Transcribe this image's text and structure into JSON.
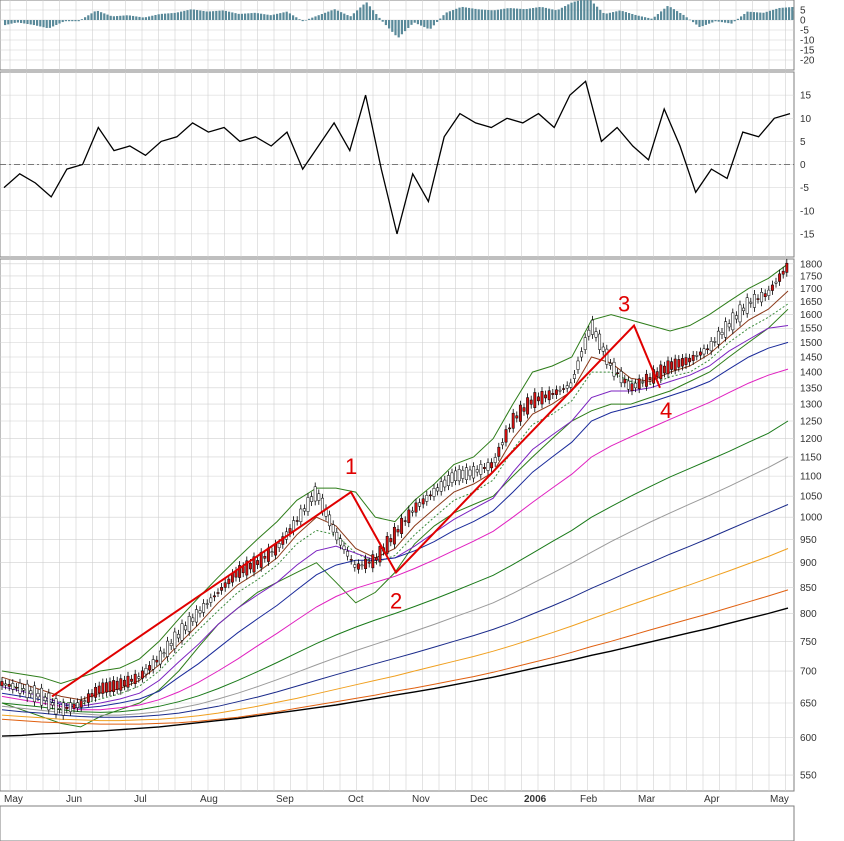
{
  "chart_data": {
    "type": "line",
    "title": "",
    "xlabel": "",
    "ylabel": "",
    "x_ticks": [
      "May",
      "Jun",
      "Jul",
      "Aug",
      "Sep",
      "Oct",
      "Nov",
      "Dec",
      "2006",
      "Feb",
      "Mar",
      "Apr",
      "May"
    ],
    "panels": [
      {
        "name": "macd-histogram",
        "ylim": [
          -25,
          10
        ],
        "y_ticks": [
          5,
          0,
          -5,
          -10,
          -15,
          -20
        ],
        "y_tick_labels": [
          "5",
          "0",
          "-5",
          "-10",
          "-15",
          "-20"
        ]
      },
      {
        "name": "momentum-oscillator",
        "ylim": [
          -20,
          20
        ],
        "y_ticks": [
          15,
          10,
          5,
          0,
          -5,
          -10,
          -15
        ],
        "y_tick_labels": [
          "15",
          "10",
          "5",
          "0",
          "-5",
          "-10",
          "-15"
        ],
        "zero_line": true
      },
      {
        "name": "price",
        "scale": "log",
        "ylim": [
          530,
          1820
        ],
        "y_ticks": [
          1800,
          1750,
          1700,
          1650,
          1600,
          1550,
          1500,
          1450,
          1400,
          1350,
          1300,
          1250,
          1200,
          1150,
          1100,
          1050,
          1000,
          950,
          900,
          850,
          800,
          750,
          700,
          650,
          600,
          550
        ],
        "y_tick_labels": [
          "1800",
          "1750",
          "1700",
          "1650",
          "1600",
          "1550",
          "1500",
          "1450",
          "1400",
          "1350",
          "1300",
          "1250",
          "1200",
          "1150",
          "1100",
          "1050",
          "1000",
          "950",
          "900",
          "850",
          "800",
          "750",
          "700",
          "650",
          "600",
          "550"
        ]
      }
    ],
    "oscillator": {
      "x": [
        0,
        1,
        2,
        3,
        4,
        5,
        6,
        7,
        8,
        9,
        10,
        11,
        12,
        13,
        14,
        15,
        16,
        17,
        18,
        19,
        20,
        21,
        22,
        23,
        24,
        25,
        26,
        27,
        28,
        29,
        30,
        31,
        32,
        33,
        34,
        35,
        36,
        37,
        38,
        39,
        40,
        41,
        42,
        43,
        44,
        45,
        46,
        47,
        48,
        49,
        50
      ],
      "values": [
        -5,
        -2,
        -4,
        -7,
        -1,
        0,
        8,
        3,
        4,
        2,
        5,
        6,
        9,
        7,
        8,
        5,
        6,
        4,
        7,
        -1,
        4,
        9,
        3,
        15,
        -1,
        -15,
        -2,
        -8,
        6,
        11,
        9,
        8,
        10,
        9,
        11,
        8,
        15,
        18,
        5,
        8,
        4,
        1,
        12,
        4,
        -6,
        -1,
        -3,
        7,
        6,
        10,
        11
      ]
    },
    "series": [
      {
        "name": "price",
        "color": "#000000",
        "values": [
          680,
          672,
          660,
          640,
          648,
          672,
          678,
          690,
          720,
          760,
          800,
          840,
          880,
          900,
          930,
          990,
          1060,
          960,
          890,
          905,
          960,
          1020,
          1060,
          1100,
          1110,
          1130,
          1250,
          1310,
          1330,
          1360,
          1560,
          1420,
          1350,
          1380,
          1420,
          1440,
          1480,
          1560,
          1640,
          1680,
          1790
        ]
      },
      {
        "name": "bollinger-upper",
        "color": "#2e7d1a",
        "values": [
          700,
          695,
          690,
          680,
          690,
          700,
          705,
          720,
          750,
          790,
          830,
          870,
          910,
          950,
          990,
          1040,
          1070,
          1070,
          1060,
          1000,
          990,
          1040,
          1080,
          1130,
          1150,
          1200,
          1300,
          1400,
          1420,
          1450,
          1580,
          1600,
          1580,
          1560,
          1540,
          1560,
          1600,
          1650,
          1700,
          1740,
          1800
        ]
      },
      {
        "name": "bollinger-lower",
        "color": "#2e7d1a",
        "values": [
          650,
          640,
          630,
          620,
          615,
          630,
          640,
          650,
          670,
          700,
          740,
          780,
          810,
          840,
          860,
          880,
          900,
          860,
          820,
          840,
          880,
          940,
          980,
          1010,
          1030,
          1050,
          1100,
          1150,
          1200,
          1250,
          1280,
          1300,
          1300,
          1320,
          1340,
          1370,
          1400,
          1450,
          1500,
          1550,
          1620
        ]
      },
      {
        "name": "ma-brown",
        "color": "#8b3a1a",
        "values": [
          690,
          680,
          670,
          660,
          655,
          665,
          672,
          685,
          710,
          745,
          780,
          820,
          855,
          880,
          910,
          960,
          1000,
          980,
          930,
          910,
          930,
          980,
          1020,
          1060,
          1080,
          1110,
          1200,
          1270,
          1300,
          1340,
          1450,
          1430,
          1380,
          1370,
          1400,
          1420,
          1460,
          1520,
          1580,
          1620,
          1690
        ]
      },
      {
        "name": "ma-dotted",
        "color": "#3a8a3a",
        "values": [
          680,
          672,
          662,
          652,
          648,
          656,
          664,
          676,
          700,
          735,
          770,
          805,
          840,
          865,
          895,
          940,
          970,
          960,
          920,
          900,
          915,
          960,
          1000,
          1040,
          1060,
          1090,
          1170,
          1240,
          1270,
          1310,
          1400,
          1400,
          1370,
          1360,
          1385,
          1400,
          1440,
          1500,
          1550,
          1590,
          1640
        ]
      },
      {
        "name": "ma-violet",
        "color": "#7b22c0",
        "values": [
          675,
          668,
          660,
          650,
          645,
          650,
          656,
          665,
          685,
          715,
          745,
          780,
          810,
          835,
          860,
          895,
          925,
          935,
          920,
          905,
          910,
          935,
          965,
          995,
          1020,
          1045,
          1110,
          1170,
          1210,
          1250,
          1320,
          1340,
          1340,
          1350,
          1370,
          1390,
          1420,
          1470,
          1510,
          1550,
          1560
        ]
      },
      {
        "name": "ma-navy",
        "color": "#1a2a9a",
        "values": [
          665,
          660,
          655,
          648,
          642,
          645,
          650,
          656,
          668,
          690,
          712,
          738,
          765,
          790,
          815,
          845,
          875,
          895,
          905,
          905,
          910,
          925,
          945,
          970,
          990,
          1015,
          1060,
          1110,
          1150,
          1190,
          1250,
          1275,
          1290,
          1305,
          1325,
          1345,
          1370,
          1410,
          1450,
          1480,
          1500
        ]
      },
      {
        "name": "ma-magenta",
        "color": "#e020c0",
        "values": [
          660,
          655,
          650,
          645,
          640,
          640,
          643,
          647,
          655,
          667,
          682,
          700,
          720,
          742,
          764,
          788,
          812,
          832,
          848,
          860,
          872,
          888,
          906,
          926,
          946,
          968,
          1000,
          1035,
          1070,
          1105,
          1150,
          1180,
          1205,
          1230,
          1255,
          1280,
          1305,
          1335,
          1365,
          1390,
          1410
        ]
      },
      {
        "name": "ma-green",
        "color": "#1a7a1a",
        "values": [
          650,
          647,
          644,
          640,
          637,
          636,
          637,
          640,
          645,
          652,
          661,
          672,
          685,
          699,
          714,
          730,
          746,
          761,
          775,
          788,
          800,
          813,
          827,
          842,
          858,
          874,
          896,
          920,
          945,
          970,
          1000,
          1025,
          1050,
          1074,
          1098,
          1120,
          1142,
          1165,
          1190,
          1215,
          1250
        ]
      },
      {
        "name": "ma-grey",
        "color": "#9a9a9a",
        "values": [
          645,
          642,
          639,
          636,
          634,
          632,
          632,
          634,
          637,
          642,
          648,
          656,
          665,
          675,
          686,
          698,
          710,
          722,
          734,
          745,
          756,
          768,
          780,
          793,
          806,
          820,
          838,
          858,
          878,
          899,
          922,
          945,
          967,
          989,
          1010,
          1031,
          1052,
          1074,
          1098,
          1122,
          1150
        ]
      },
      {
        "name": "ma-blue",
        "color": "#1a2a8a",
        "values": [
          640,
          637,
          635,
          632,
          630,
          629,
          629,
          630,
          632,
          635,
          640,
          645,
          652,
          659,
          667,
          676,
          685,
          694,
          703,
          712,
          721,
          730,
          740,
          750,
          760,
          771,
          784,
          799,
          814,
          830,
          848,
          865,
          883,
          900,
          918,
          935,
          953,
          972,
          991,
          1010,
          1030
        ]
      },
      {
        "name": "ma-gold",
        "color": "#f0a020",
        "values": [
          632,
          630,
          628,
          626,
          625,
          624,
          624,
          625,
          626,
          628,
          631,
          635,
          640,
          645,
          651,
          657,
          664,
          671,
          678,
          685,
          692,
          700,
          708,
          716,
          724,
          733,
          743,
          754,
          765,
          777,
          790,
          803,
          816,
          829,
          842,
          855,
          869,
          883,
          898,
          913,
          930
        ]
      },
      {
        "name": "ma-orange",
        "color": "#e06010",
        "values": [
          626,
          624,
          622,
          621,
          620,
          619,
          619,
          619,
          620,
          621,
          623,
          626,
          629,
          633,
          637,
          642,
          647,
          652,
          657,
          662,
          668,
          673,
          679,
          685,
          691,
          698,
          706,
          714,
          722,
          731,
          741,
          750,
          760,
          770,
          780,
          790,
          800,
          811,
          822,
          833,
          845
        ]
      },
      {
        "name": "ma-black",
        "color": "#000000",
        "values": [
          602,
          603,
          605,
          606,
          608,
          609,
          611,
          613,
          615,
          618,
          621,
          624,
          627,
          631,
          635,
          639,
          643,
          647,
          652,
          657,
          662,
          667,
          672,
          678,
          684,
          690,
          697,
          704,
          711,
          718,
          726,
          733,
          741,
          749,
          757,
          765,
          773,
          782,
          791,
          800,
          810
        ]
      }
    ],
    "wave_count": {
      "labels": [
        "1",
        "2",
        "3",
        "4"
      ],
      "points": [
        {
          "label": "1",
          "value": 1060
        },
        {
          "label": "2",
          "value": 880
        },
        {
          "label": "3",
          "value": 1560
        },
        {
          "label": "4",
          "value": 1350
        }
      ]
    },
    "colors": {
      "wave": "#e00000",
      "grid": "#d0d0d0",
      "histogram": "#5a8a9a"
    }
  }
}
